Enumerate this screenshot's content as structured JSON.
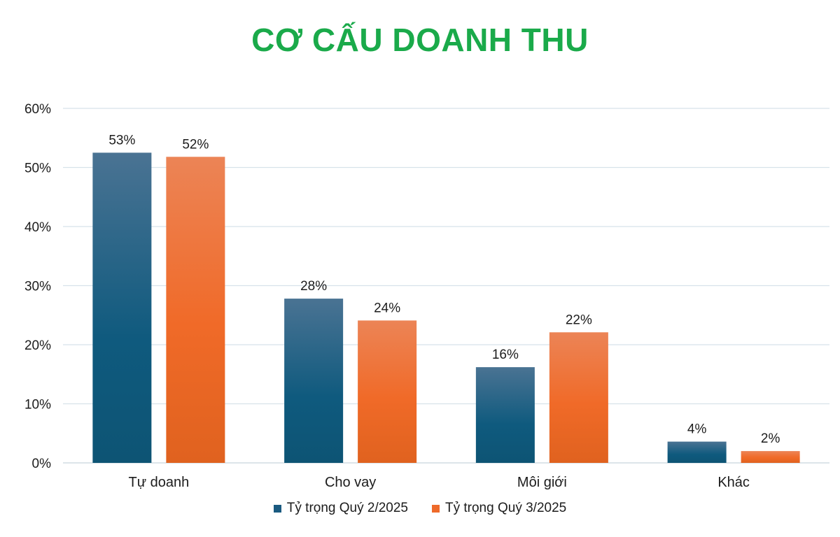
{
  "chart_data": {
    "type": "bar",
    "title": "CƠ CẤU DOANH THU",
    "categories": [
      "Tự doanh",
      "Cho vay",
      "Môi giới",
      "Khác"
    ],
    "series": [
      {
        "name": "Tỷ trọng Quý 2/2025",
        "values": [
          52.5,
          27.8,
          16.2,
          3.6
        ],
        "labels": [
          "53%",
          "28%",
          "16%",
          "4%"
        ],
        "color": "#1a5a80"
      },
      {
        "name": "Tỷ trọng Quý 3/2025",
        "values": [
          51.8,
          24.1,
          22.1,
          2.0
        ],
        "labels": [
          "52%",
          "24%",
          "22%",
          "2%"
        ],
        "color": "#ee6a2a"
      }
    ],
    "yticks": [
      "0%",
      "10%",
      "20%",
      "30%",
      "40%",
      "50%",
      "60%"
    ],
    "ylim": [
      0,
      60
    ],
    "grid": true,
    "legend_position": "bottom"
  }
}
